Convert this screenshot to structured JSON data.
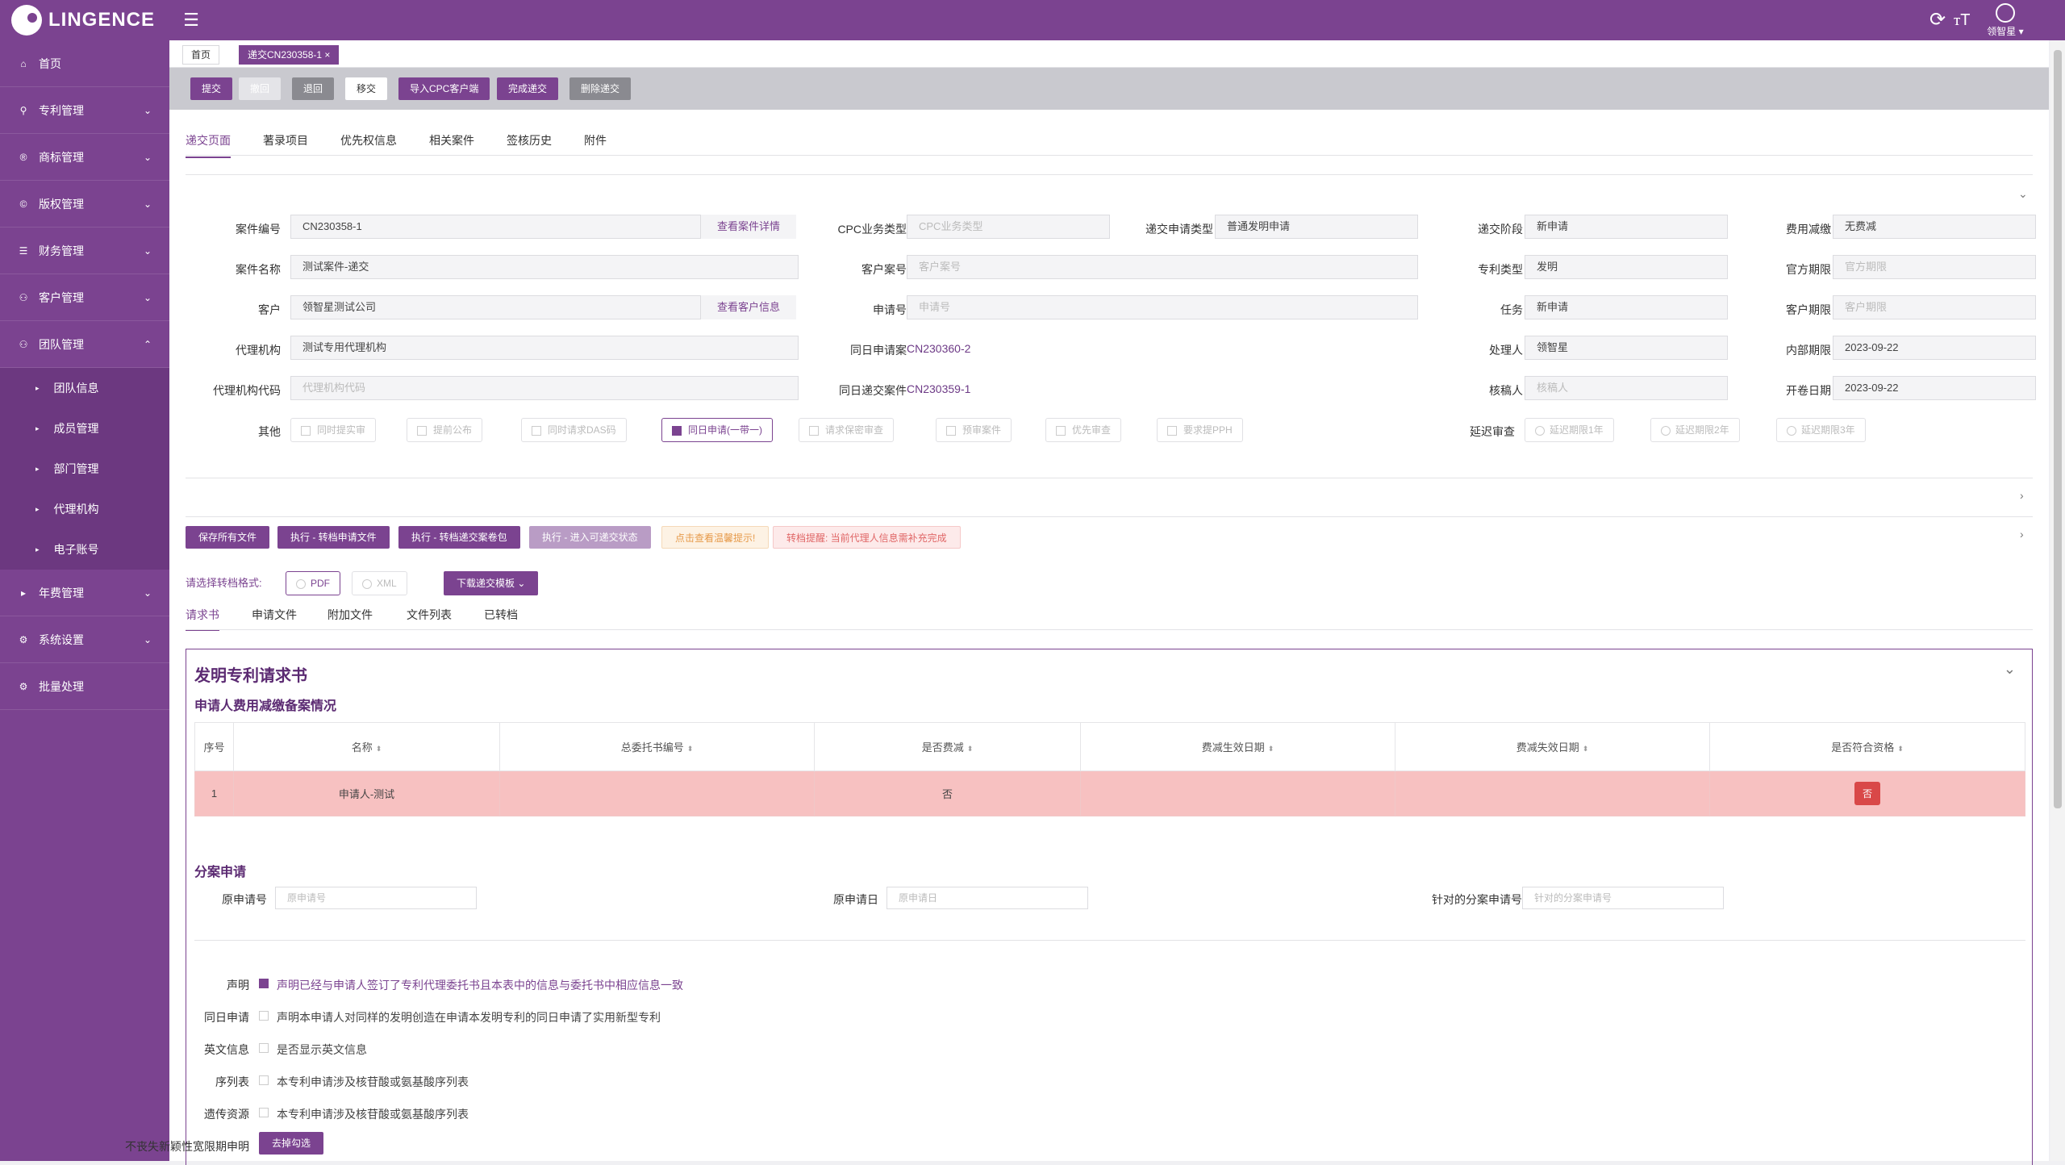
{
  "brand": {
    "name": "LINGENCE"
  },
  "header": {
    "user_name": "领智星"
  },
  "sidebar": {
    "items": [
      {
        "label": "首页"
      },
      {
        "label": "专利管理"
      },
      {
        "label": "商标管理"
      },
      {
        "label": "版权管理"
      },
      {
        "label": "财务管理"
      },
      {
        "label": "客户管理"
      },
      {
        "label": "团队管理"
      }
    ],
    "subitems": [
      {
        "label": "团队信息"
      },
      {
        "label": "成员管理"
      },
      {
        "label": "部门管理"
      },
      {
        "label": "代理机构"
      },
      {
        "label": "电子账号"
      }
    ],
    "items2": [
      {
        "label": "年费管理"
      },
      {
        "label": "系统设置"
      },
      {
        "label": "批量处理"
      }
    ]
  },
  "page_tabs": [
    {
      "label": "首页"
    },
    {
      "label": "递交CN230358-1",
      "close": "×"
    }
  ],
  "toolbar": [
    "提交",
    "撤回",
    "退回",
    "移交",
    "导入CPC客户端",
    "完成递交",
    "删除递交"
  ],
  "section_tabs": [
    "递交页面",
    "著录项目",
    "优先权信息",
    "相关案件",
    "签核历史",
    "附件"
  ],
  "form": {
    "case_no_label": "案件编号",
    "case_no": "CN230358-1",
    "view_case": "查看案件详情",
    "case_name_label": "案件名称",
    "case_name": "测试案件-递交",
    "client_label": "客户",
    "client": "领智星测试公司",
    "view_client": "查看客户信息",
    "agency_label": "代理机构",
    "agency": "测试专用代理机构",
    "agency_code_label": "代理机构代码",
    "agency_code_ph": "代理机构代码",
    "other_label": "其他",
    "cpc_type_label": "CPC业务类型",
    "cpc_type_ph": "CPC业务类型",
    "client_ref_label": "客户案号",
    "client_ref_ph": "客户案号",
    "app_no_label": "申请号",
    "app_no_ph": "申请号",
    "sameday_app_label": "同日申请案",
    "sameday_app": "CN230360-2",
    "sameday_sub_label": "同日递交案件",
    "sameday_sub": "CN230359-1",
    "sub_type_label": "递交申请类型",
    "sub_type": "普通发明申请",
    "stage_label": "递交阶段",
    "stage": "新申请",
    "patent_type_label": "专利类型",
    "patent_type": "发明",
    "task_label": "任务",
    "task": "新申请",
    "handler_label": "处理人",
    "handler": "领智星",
    "reviewer_label": "核稿人",
    "reviewer_ph": "核稿人",
    "delay_label": "延迟审查",
    "fee_label": "费用减缴",
    "fee": "无费减",
    "official_deadline_label": "官方期限",
    "official_deadline_ph": "官方期限",
    "client_deadline_label": "客户期限",
    "client_deadline_ph": "客户期限",
    "internal_deadline_label": "内部期限",
    "internal_deadline": "2023-09-22",
    "open_date_label": "开卷日期",
    "open_date": "2023-09-22"
  },
  "other_checks": [
    "同时提实审",
    "提前公布",
    "同时请求DAS码",
    "同日申请(一带一)",
    "请求保密审查",
    "预审案件",
    "优先审查",
    "要求提PPH"
  ],
  "delay_options": [
    "延迟期限1年",
    "延迟期限2年",
    "延迟期限3年"
  ],
  "actions": [
    "保存所有文件",
    "执行 - 转档申请文件",
    "执行 - 转档递交案卷包",
    "执行 - 进入可递交状态",
    "点击查看温馨提示!",
    "转档提醒: 当前代理人信息需补充完成"
  ],
  "format": {
    "label": "请选择转档格式:",
    "pdf": "PDF",
    "xml": "XML",
    "download": "下载递交模板"
  },
  "req_tabs": [
    "请求书",
    "申请文件",
    "附加文件",
    "文件列表",
    "已转档"
  ],
  "request": {
    "title": "发明专利请求书",
    "subtitle": "申请人费用减缴备案情况",
    "columns": [
      "序号",
      "名称",
      "总委托书编号",
      "是否费减",
      "费减生效日期",
      "费减失效日期",
      "是否符合资格"
    ],
    "rows": [
      [
        "1",
        "申请人-测试",
        "",
        "否",
        "",
        "",
        "否"
      ]
    ],
    "divisional_title": "分案申请",
    "orig_no_label": "原申请号",
    "orig_no_ph": "原申请号",
    "orig_date_label": "原申请日",
    "orig_date_ph": "原申请日",
    "target_label": "针对的分案申请号",
    "target_ph": "针对的分案申请号",
    "decl": [
      {
        "label": "声明",
        "text": "声明已经与申请人签订了专利代理委托书且本表中的信息与委托书中相应信息一致"
      },
      {
        "label": "同日申请",
        "text": "声明本申请人对同样的发明创造在申请本发明专利的同日申请了实用新型专利"
      },
      {
        "label": "英文信息",
        "text": "是否显示英文信息"
      },
      {
        "label": "序列表",
        "text": "本专利申请涉及核苷酸或氨基酸序列表"
      },
      {
        "label": "遗传资源",
        "text": "本专利申请涉及核苷酸或氨基酸序列表"
      }
    ],
    "last_label": "不丧失新颖性宽限期申明",
    "last_btn": "去掉勾选"
  }
}
